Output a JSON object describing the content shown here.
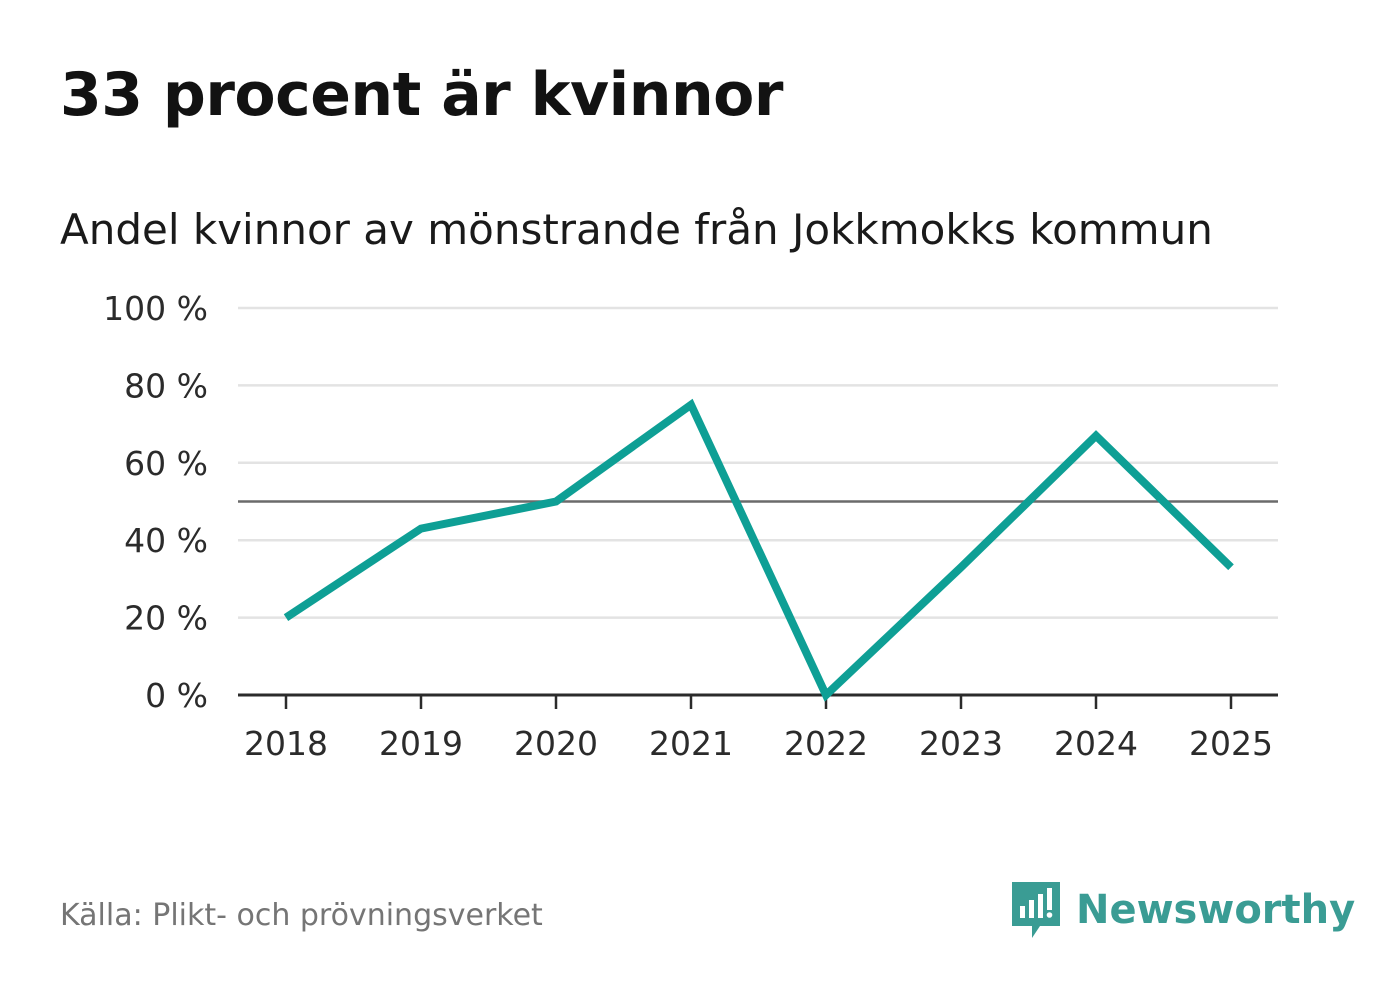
{
  "title": "33 procent är kvinnor",
  "subtitle": "Andel kvinnor av mönstrande från Jokkmokks kommun",
  "source": "Källa: Plikt- och prövningsverket",
  "brand": "Newsworthy",
  "colors": {
    "line": "#0e9f95",
    "grid": "#e3e3e3",
    "reference": "#6b6b6b",
    "axis": "#2b2b2b",
    "brand": "#3a9c94"
  },
  "chart_data": {
    "type": "line",
    "title": "33 procent är kvinnor",
    "subtitle": "Andel kvinnor av mönstrande från Jokkmokks kommun",
    "xlabel": "",
    "ylabel": "",
    "categories": [
      "2018",
      "2019",
      "2020",
      "2021",
      "2022",
      "2023",
      "2024",
      "2025"
    ],
    "series": [
      {
        "values": [
          20,
          43,
          50,
          75,
          0,
          33,
          67,
          33
        ]
      }
    ],
    "ylim": [
      0,
      100
    ],
    "yticks": [
      0,
      20,
      40,
      60,
      80,
      100
    ],
    "ytick_labels": [
      "0 %",
      "20 %",
      "40 %",
      "60 %",
      "80 %",
      "100 %"
    ],
    "reference_line": 50,
    "grid": true,
    "legend": "none"
  }
}
